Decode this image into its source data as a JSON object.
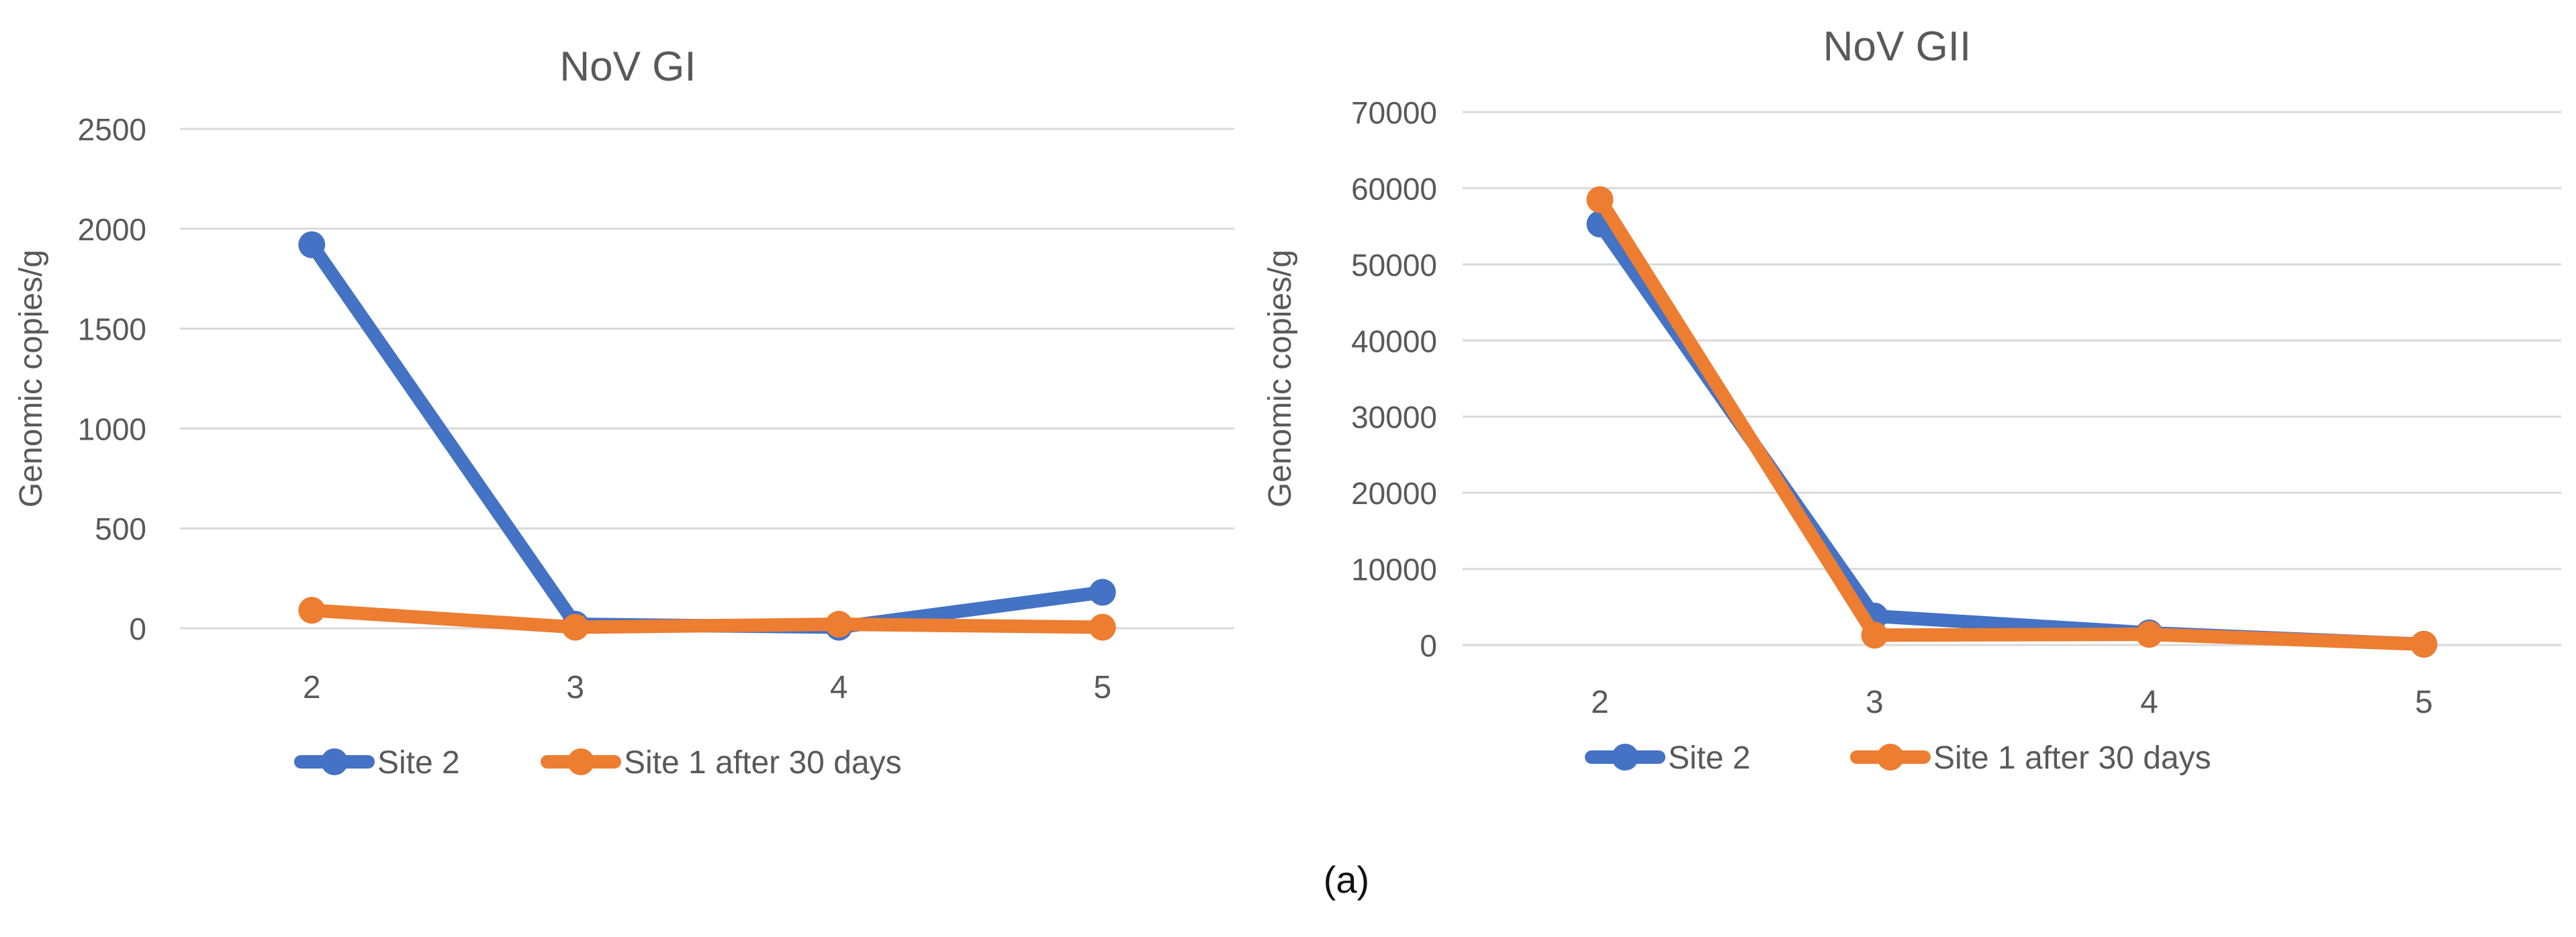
{
  "figure_label": "(a)",
  "chart_data": [
    {
      "type": "line",
      "title": "NoV GI",
      "xlabel": "",
      "ylabel": "Genomic copies/g",
      "categories": [
        "2",
        "3",
        "4",
        "5"
      ],
      "ylim": [
        0,
        2500
      ],
      "yticks": [
        0,
        500,
        1000,
        1500,
        2000,
        2500
      ],
      "ytick_labels": [
        "0",
        "500",
        "1000",
        "1500",
        "2000",
        "2500"
      ],
      "grid": true,
      "legend_position": "bottom",
      "series": [
        {
          "name": "Site 2",
          "color": "#4472C4",
          "values": [
            1920,
            20,
            5,
            180
          ]
        },
        {
          "name": "Site 1 after 30 days",
          "color": "#ED7D31",
          "values": [
            90,
            5,
            20,
            5
          ]
        }
      ]
    },
    {
      "type": "line",
      "title": "NoV GII",
      "xlabel": "",
      "ylabel": "Genomic copies/g",
      "categories": [
        "2",
        "3",
        "4",
        "5"
      ],
      "ylim": [
        0,
        70000
      ],
      "yticks": [
        0,
        10000,
        20000,
        30000,
        40000,
        50000,
        60000,
        70000
      ],
      "ytick_labels": [
        "0",
        "10000",
        "20000",
        "30000",
        "40000",
        "50000",
        "60000",
        "70000"
      ],
      "grid": true,
      "legend_position": "bottom",
      "series": [
        {
          "name": "Site 2",
          "color": "#4472C4",
          "values": [
            55300,
            3800,
            1600,
            100
          ]
        },
        {
          "name": "Site 1 after 30 days",
          "color": "#ED7D31",
          "values": [
            58500,
            1300,
            1400,
            100
          ]
        }
      ]
    }
  ]
}
